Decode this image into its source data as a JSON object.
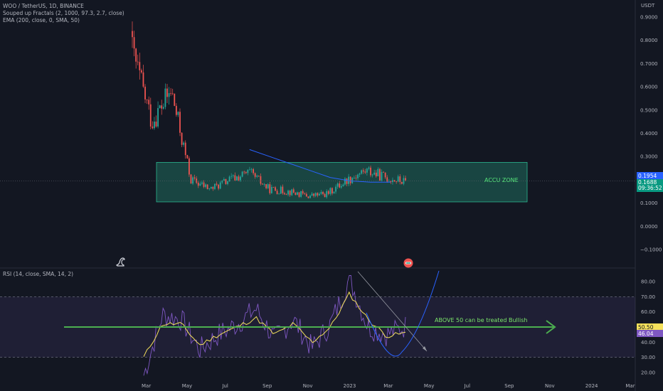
{
  "legend": {
    "title": "WOO / TetherUS, 1D, BINANCE",
    "ind1": "Souped up Fractals (2, 1000, 97.3, 2.7, close)",
    "ind2": "EMA (200, close, 0, SMA, 50)",
    "rsi": "RSI (14, close, SMA, 14, 2)"
  },
  "price_axis": {
    "currency": "USDT",
    "ticks": [
      "0.9000",
      "0.8000",
      "0.7000",
      "0.6000",
      "0.5000",
      "0.4000",
      "0.3000",
      "0.2000",
      "0.1000",
      "0.0000",
      "−0.1000"
    ],
    "tick_values": [
      0.9,
      0.8,
      0.7,
      0.6,
      0.5,
      0.4,
      0.3,
      0.2,
      0.1,
      0.0,
      -0.1
    ]
  },
  "rsi_axis": {
    "ticks": [
      "80.00",
      "70.00",
      "60.00",
      "50.00",
      "40.00",
      "30.00",
      "20.00"
    ],
    "tick_values": [
      80,
      70,
      60,
      50,
      40,
      30,
      20
    ]
  },
  "x_axis": {
    "ticks": [
      "Mar",
      "May",
      "Jul",
      "Sep",
      "Nov",
      "2023",
      "Mar",
      "May",
      "Jul",
      "Sep",
      "Nov",
      "2024",
      "Mar"
    ]
  },
  "price_tags": {
    "last": "0.1954",
    "ema_value": "0.1688",
    "countdown": "09:36:52"
  },
  "rsi_tags": {
    "rsi": "50.50",
    "rsi_ma": "46.04"
  },
  "annotations": {
    "zone_label": "ACCU ZONE",
    "arrow_label": "ABOVE 50 can be treated Bullish"
  },
  "icons": {
    "dino": "dinosaur-icon",
    "badge": "tradingview-badge-icon"
  },
  "colors": {
    "background": "#131722",
    "up": "#26a69a",
    "down": "#ef5350",
    "ema": "#2962ff",
    "zone": "#1f6b5c",
    "rsi_line": "#7e57c2",
    "rsi_ma": "#f5e15b",
    "arrow": "#4caf50",
    "curve": "#2962ff"
  },
  "chart_data": [
    {
      "type": "candlestick",
      "title": "WOO / TetherUS, 1D, BINANCE",
      "ylabel": "USDT",
      "ylim": [
        -0.1,
        0.9
      ],
      "x": [
        "2022-02",
        "2022-03",
        "2022-04",
        "2022-05",
        "2022-06",
        "2022-07",
        "2022-08",
        "2022-09",
        "2022-10",
        "2022-11",
        "2022-12",
        "2023-01",
        "2023-02",
        "2023-03",
        "2023-04"
      ],
      "close_approx": [
        0.75,
        0.45,
        0.58,
        0.2,
        0.16,
        0.2,
        0.23,
        0.16,
        0.15,
        0.13,
        0.14,
        0.2,
        0.24,
        0.21,
        0.19
      ],
      "ema_200": {
        "start": "2022-08",
        "values_approx": [
          0.33,
          0.3,
          0.27,
          0.24,
          0.21,
          0.195,
          0.19,
          0.19
        ]
      },
      "accumulation_zone": {
        "low": 0.105,
        "high": 0.275,
        "label": "ACCU ZONE"
      },
      "last_price": 0.1954
    },
    {
      "type": "line",
      "title": "RSI (14, close, SMA, 14, 2)",
      "ylim": [
        15,
        85
      ],
      "bands": [
        30,
        70
      ],
      "reference_line": 50,
      "x": [
        "2022-02",
        "2022-03",
        "2022-04",
        "2022-05",
        "2022-06",
        "2022-07",
        "2022-08",
        "2022-09",
        "2022-10",
        "2022-11",
        "2022-12",
        "2023-01",
        "2023-02",
        "2023-03",
        "2023-04"
      ],
      "series": [
        {
          "name": "RSI",
          "values": [
            18,
            58,
            55,
            35,
            45,
            52,
            62,
            42,
            55,
            36,
            52,
            82,
            50,
            45,
            50.5
          ]
        },
        {
          "name": "RSI MA",
          "values": [
            30,
            52,
            52,
            38,
            45,
            50,
            56,
            45,
            52,
            40,
            50,
            72,
            55,
            44,
            46.04
          ]
        }
      ],
      "last_rsi": 50.5,
      "last_rsi_ma": 46.04
    }
  ]
}
